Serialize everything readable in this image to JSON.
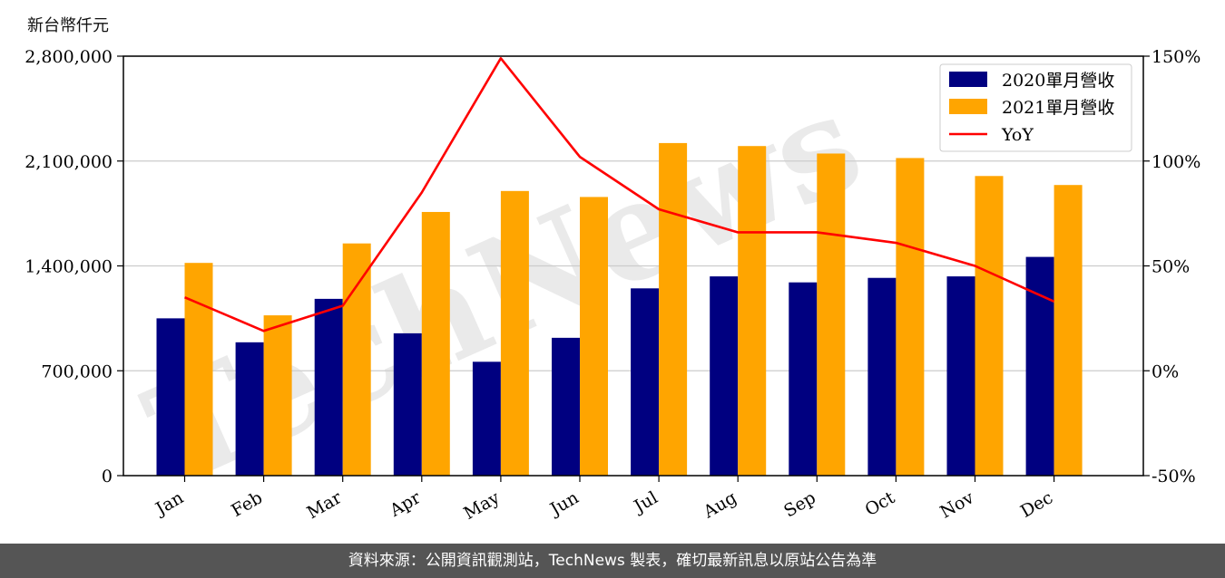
{
  "chart_data": {
    "type": "bar",
    "ylabel": "新台幣仟元",
    "categories": [
      "Jan",
      "Feb",
      "Mar",
      "Apr",
      "May",
      "Jun",
      "Jul",
      "Aug",
      "Sep",
      "Oct",
      "Nov",
      "Dec"
    ],
    "ylim": [
      0,
      2800000
    ],
    "y_ticks": [
      "0",
      "700,000",
      "1,400,000",
      "2,100,000",
      "2,800,000"
    ],
    "y_tick_values": [
      0,
      700000,
      1400000,
      2100000,
      2800000
    ],
    "y2lim": [
      -50,
      150
    ],
    "y2_ticks": [
      "-50%",
      "0%",
      "50%",
      "100%",
      "150%"
    ],
    "y2_tick_values": [
      -50,
      0,
      50,
      100,
      150
    ],
    "grid": "horizontal",
    "legend_position": "top-right",
    "series": [
      {
        "name": "2020單月營收",
        "kind": "bar",
        "color": "#000080",
        "values": [
          1050000,
          890000,
          1180000,
          950000,
          760000,
          920000,
          1250000,
          1330000,
          1290000,
          1320000,
          1330000,
          1460000
        ]
      },
      {
        "name": "2021單月營收",
        "kind": "bar",
        "color": "#FFA500",
        "values": [
          1420000,
          1070000,
          1550000,
          1760000,
          1900000,
          1860000,
          2220000,
          2200000,
          2150000,
          2120000,
          2000000,
          1940000
        ]
      },
      {
        "name": "YoY",
        "kind": "line",
        "axis": "right",
        "color": "#FF0000",
        "values": [
          35,
          19,
          31,
          85,
          149,
          102,
          77,
          66,
          66,
          61,
          50,
          33
        ]
      }
    ]
  },
  "watermark": "TechNews",
  "footer": "資料來源：公開資訊觀測站，TechNews 製表，確切最新訊息以原站公告為準"
}
